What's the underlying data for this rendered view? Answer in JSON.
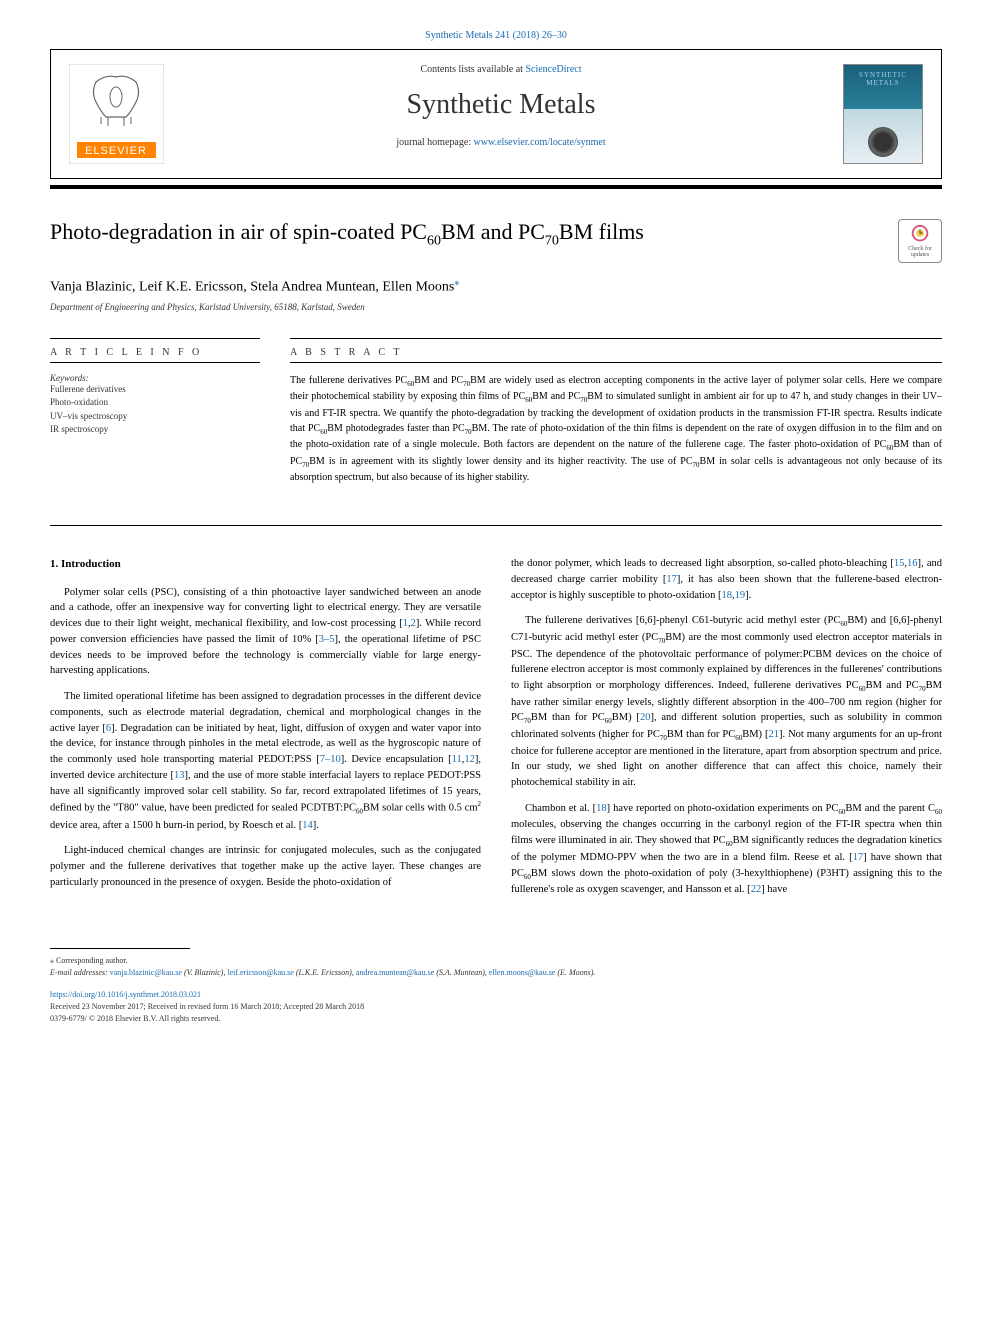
{
  "top_link": "Synthetic Metals 241 (2018) 26–30",
  "header": {
    "contents_prefix": "Contents lists available at ",
    "contents_link": "ScienceDirect",
    "journal_name": "Synthetic Metals",
    "homepage_prefix": "journal homepage: ",
    "homepage_link": "www.elsevier.com/locate/synmet",
    "cover_text": "SYNTHETIC METALS"
  },
  "updates_badge": "Check for updates",
  "title_parts": {
    "p1": "Photo-degradation in air of spin-coated PC",
    "s1": "60",
    "p2": "BM and PC",
    "s2": "70",
    "p3": "BM films"
  },
  "authors": "Vanja Blazinic, Leif K.E. Ericsson, Stela Andrea Muntean, Ellen Moons",
  "corr_marker": "⁎",
  "affiliation": "Department of Engineering and Physics, Karlstad University, 65188, Karlstad, Sweden",
  "info": {
    "label": "A R T I C L E  I N F O",
    "keywords_label": "Keywords:",
    "keywords": "Fullerene derivatives\nPhoto-oxidation\nUV–vis spectroscopy\nIR spectroscopy"
  },
  "abstract": {
    "label": "A B S T R A C T",
    "text_parts": {
      "p1": "The fullerene derivatives PC",
      "s1": "60",
      "p2": "BM and PC",
      "s2": "70",
      "p3": "BM are widely used as electron accepting components in the active layer of polymer solar cells. Here we compare their photochemical stability by exposing thin films of PC",
      "s3": "60",
      "p4": "BM and PC",
      "s4": "70",
      "p5": "BM to simulated sunlight in ambient air for up to 47 h, and study changes in their UV–vis and FT-IR spectra. We quantify the photo-degradation by tracking the development of oxidation products in the transmission FT-IR spectra. Results indicate that PC",
      "s5": "60",
      "p6": "BM photodegrades faster than PC",
      "s6": "70",
      "p7": "BM. The rate of photo-oxidation of the thin films is dependent on the rate of oxygen diffusion in to the film and on the photo-oxidation rate of a single molecule. Both factors are dependent on the nature of the fullerene cage. The faster photo-oxidation of PC",
      "s7": "60",
      "p8": "BM than of PC",
      "s8": "70",
      "p9": "BM is in agreement with its slightly lower density and its higher reactivity. The use of PC",
      "s9": "70",
      "p10": "BM in solar cells is advantageous not only because of its absorption spectrum, but also because of its higher stability."
    }
  },
  "body": {
    "heading": "1. Introduction",
    "left": {
      "para1": "Polymer solar cells (PSC), consisting of a thin photoactive layer sandwiched between an anode and a cathode, offer an inexpensive way for converting light to electrical energy. They are versatile devices due to their light weight, mechanical flexibility, and low-cost processing [",
      "c1": "1",
      "para1b": ",",
      "c1b": "2",
      "para1c": "]. While record power conversion efficiencies have passed the limit of 10% [",
      "c2": "3–5",
      "para1d": "], the operational lifetime of PSC devices needs to be improved before the technology is commercially viable for large energy-harvesting applications.",
      "para2": "The limited operational lifetime has been assigned to degradation processes in the different device components, such as electrode material degradation, chemical and morphological changes in the active layer [",
      "c3": "6",
      "para2b": "]. Degradation can be initiated by heat, light, diffusion of oxygen and water vapor into the device, for instance through pinholes in the metal electrode, as well as the hygroscopic nature of the commonly used hole transporting material PEDOT:PSS [",
      "c4": "7–10",
      "para2c": "]. Device encapsulation [",
      "c5": "11",
      "para2d": ",",
      "c5b": "12",
      "para2e": "], inverted device architecture [",
      "c6": "13",
      "para2f": "], and the use of more stable interfacial layers to replace PEDOT:PSS have all significantly improved solar cell stability. So far, record extrapolated lifetimes of 15 years, defined by the \"T80\" value, have been predicted for sealed PCDTBT:PC",
      "sub1": "60",
      "para2g": "BM solar cells with 0.5 cm",
      "sup1": "2",
      "para2h": " device area, after a 1500 h burn-in period, by Roesch et al. [",
      "c7": "14",
      "para2i": "].",
      "para3": "Light-induced chemical changes are intrinsic for conjugated molecules, such as the conjugated polymer and the fullerene derivatives that together make up the active layer. These changes are particularly pronounced in the presence of oxygen. Beside the photo-oxidation of"
    },
    "right": {
      "para1": "the donor polymer, which leads to decreased light absorption, so-called photo-bleaching [",
      "c1": "15",
      "para1b": ",",
      "c1c": "16",
      "para1d": "], and decreased charge carrier mobility [",
      "c2": "17",
      "para1e": "], it has also been shown that the fullerene-based electron-acceptor is highly susceptible to photo-oxidation [",
      "c3": "18",
      "para1f": ",",
      "c3b": "19",
      "para1g": "].",
      "para2": "The fullerene derivatives [6,6]-phenyl C61-butyric acid methyl ester (PC",
      "sub1": "60",
      "para2b": "BM) and [6,6]-phenyl C71-butyric acid methyl ester (PC",
      "sub2": "70",
      "para2c": "BM) are the most commonly used electron acceptor materials in PSC. The dependence of the photovoltaic performance of polymer:PCBM devices on the choice of fullerene electron acceptor is most commonly explained by differences in the fullerenes' contributions to light absorption or morphology differences. Indeed, fullerene derivatives PC",
      "sub3": "60",
      "para2d": "BM and PC",
      "sub4": "70",
      "para2e": "BM have rather similar energy levels, slightly different absorption in the 400–700 nm region (higher for PC",
      "sub5": "70",
      "para2f": "BM than for PC",
      "sub6": "60",
      "para2g": "BM) [",
      "c4": "20",
      "para2h": "], and different solution properties, such as solubility in common chlorinated solvents (higher for PC",
      "sub7": "70",
      "para2i": "BM than for PC",
      "sub8": "60",
      "para2j": "BM) [",
      "c5": "21",
      "para2k": "]. Not many arguments for an up-front choice for fullerene acceptor are mentioned in the literature, apart from absorption spectrum and price. In our study, we shed light on another difference that can affect this choice, namely their photochemical stability in air.",
      "para3": "Chambon et al. [",
      "c6": "18",
      "para3b": "] have reported on photo-oxidation experiments on PC",
      "sub9": "60",
      "para3c": "BM and the parent C",
      "sub10": "60",
      "para3d": " molecules, observing the changes occurring in the carbonyl region of the FT-IR spectra when thin films were illuminated in air. They showed that PC",
      "sub11": "60",
      "para3e": "BM significantly reduces the degradation kinetics of the polymer MDMO-PPV when the two are in a blend film. Reese et al. [",
      "c7": "17",
      "para3f": "] have shown that PC",
      "sub12": "60",
      "para3g": "BM slows down the photo-oxidation of poly (3-hexylthiophene) (P3HT) assigning this to the fullerene's role as oxygen scavenger, and Hansson et al. [",
      "c8": "22",
      "para3h": "] have"
    }
  },
  "footer": {
    "corr_note": "⁎ Corresponding author.",
    "emails_label": "E-mail addresses: ",
    "emails": [
      {
        "addr": "vanja.blazinic@kau.se",
        "name": " (V. Blazinic), "
      },
      {
        "addr": "leif.ericsson@kau.se",
        "name": " (L.K.E. Ericsson), "
      },
      {
        "addr": "andrea.muntean@kau.se",
        "name": " (S.A. Muntean), "
      },
      {
        "addr": "ellen.moons@kau.se",
        "name": " (E. Moons)."
      }
    ],
    "doi": "https://doi.org/10.1016/j.synthmet.2018.03.021",
    "received": "Received 23 November 2017; Received in revised form 16 March 2018; Accepted 28 March 2018",
    "copyright": "0379-6779/ © 2018 Elsevier B.V. All rights reserved."
  }
}
